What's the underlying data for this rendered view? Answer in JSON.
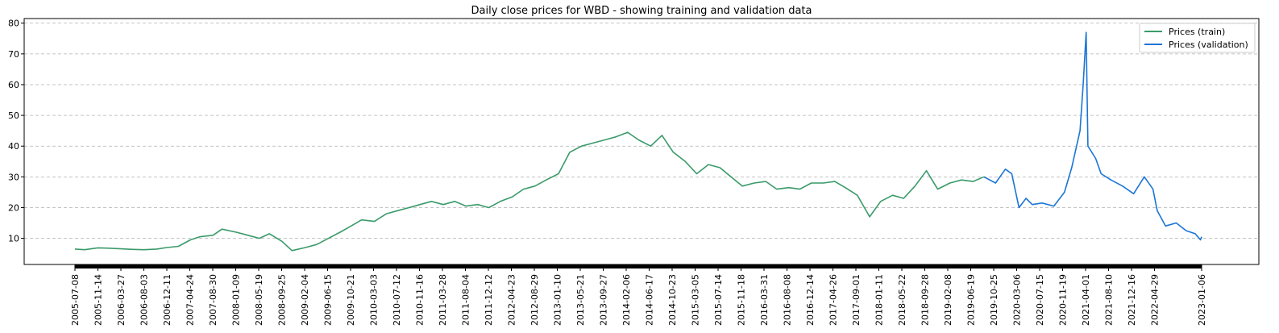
{
  "chart_data": {
    "type": "line",
    "title": "Daily close prices for WBD - showing training and validation data",
    "xlabel": "",
    "ylabel": "",
    "x_range": [
      "2005-07-08",
      "2023-01-06"
    ],
    "ylim": [
      1.5,
      81.5
    ],
    "y_ticks": [
      10,
      20,
      30,
      40,
      50,
      60,
      70,
      80
    ],
    "x_tick_labels": [
      "2005-07-08",
      "2005-11-14",
      "2006-03-27",
      "2006-08-03",
      "2006-12-11",
      "2007-04-24",
      "2007-08-30",
      "2008-01-09",
      "2008-05-19",
      "2008-09-25",
      "2009-02-04",
      "2009-06-15",
      "2009-10-21",
      "2010-03-03",
      "2010-07-12",
      "2010-11-16",
      "2011-03-28",
      "2011-08-04",
      "2011-12-12",
      "2012-04-23",
      "2012-08-29",
      "2013-01-10",
      "2013-05-21",
      "2013-09-27",
      "2014-02-06",
      "2014-06-17",
      "2014-10-23",
      "2015-03-05",
      "2015-07-14",
      "2015-11-18",
      "2016-03-31",
      "2016-08-08",
      "2016-12-14",
      "2017-04-26",
      "2017-09-01",
      "2018-01-11",
      "2018-05-22",
      "2018-09-28",
      "2019-02-08",
      "2019-06-19",
      "2019-10-25",
      "2020-03-06",
      "2020-07-15",
      "2020-11-19",
      "2021-04-01",
      "2021-08-10",
      "2021-12-16",
      "2022-04-29",
      "2023-01-06"
    ],
    "grid": "y-dashed",
    "legend_position": "top-right",
    "series": [
      {
        "name": "Prices (train)",
        "color": "#3a9a6a",
        "points": [
          [
            "2005-07-08",
            6.5
          ],
          [
            "2005-09-01",
            6.3
          ],
          [
            "2005-11-14",
            6.9
          ],
          [
            "2006-01-15",
            6.8
          ],
          [
            "2006-03-27",
            6.6
          ],
          [
            "2006-06-01",
            6.4
          ],
          [
            "2006-08-03",
            6.3
          ],
          [
            "2006-10-15",
            6.5
          ],
          [
            "2006-12-11",
            7.0
          ],
          [
            "2007-02-15",
            7.4
          ],
          [
            "2007-04-24",
            9.5
          ],
          [
            "2007-06-15",
            10.5
          ],
          [
            "2007-08-30",
            11.0
          ],
          [
            "2007-10-20",
            13.0
          ],
          [
            "2008-01-09",
            12.0
          ],
          [
            "2008-03-15",
            11.0
          ],
          [
            "2008-05-19",
            10.0
          ],
          [
            "2008-07-15",
            11.5
          ],
          [
            "2008-09-25",
            9.0
          ],
          [
            "2008-11-20",
            6.0
          ],
          [
            "2009-02-04",
            7.0
          ],
          [
            "2009-04-10",
            8.0
          ],
          [
            "2009-06-15",
            10.0
          ],
          [
            "2009-08-20",
            12.0
          ],
          [
            "2009-10-21",
            14.0
          ],
          [
            "2009-12-20",
            16.0
          ],
          [
            "2010-03-03",
            15.5
          ],
          [
            "2010-05-10",
            18.0
          ],
          [
            "2010-07-12",
            19.0
          ],
          [
            "2010-09-15",
            20.0
          ],
          [
            "2010-11-16",
            21.0
          ],
          [
            "2011-01-20",
            22.0
          ],
          [
            "2011-03-28",
            21.0
          ],
          [
            "2011-06-01",
            22.0
          ],
          [
            "2011-08-04",
            20.5
          ],
          [
            "2011-10-10",
            21.0
          ],
          [
            "2011-12-12",
            20.0
          ],
          [
            "2012-02-15",
            22.0
          ],
          [
            "2012-04-23",
            23.5
          ],
          [
            "2012-06-25",
            26.0
          ],
          [
            "2012-08-29",
            27.0
          ],
          [
            "2012-11-01",
            29.0
          ],
          [
            "2013-01-10",
            31.0
          ],
          [
            "2013-03-15",
            38.0
          ],
          [
            "2013-05-21",
            40.0
          ],
          [
            "2013-07-25",
            41.0
          ],
          [
            "2013-09-27",
            42.0
          ],
          [
            "2013-12-01",
            43.0
          ],
          [
            "2014-02-06",
            44.5
          ],
          [
            "2014-04-10",
            42.0
          ],
          [
            "2014-06-17",
            40.0
          ],
          [
            "2014-08-20",
            43.5
          ],
          [
            "2014-10-23",
            38.0
          ],
          [
            "2014-12-30",
            35.0
          ],
          [
            "2015-03-05",
            31.0
          ],
          [
            "2015-05-10",
            34.0
          ],
          [
            "2015-07-14",
            33.0
          ],
          [
            "2015-09-15",
            30.0
          ],
          [
            "2015-11-18",
            27.0
          ],
          [
            "2016-01-25",
            28.0
          ],
          [
            "2016-03-31",
            28.5
          ],
          [
            "2016-06-01",
            26.0
          ],
          [
            "2016-08-08",
            26.5
          ],
          [
            "2016-10-10",
            26.0
          ],
          [
            "2016-12-14",
            28.0
          ],
          [
            "2017-02-20",
            28.0
          ],
          [
            "2017-04-26",
            28.5
          ],
          [
            "2017-06-25",
            26.5
          ],
          [
            "2017-09-01",
            24.0
          ],
          [
            "2017-11-10",
            17.0
          ],
          [
            "2018-01-11",
            22.0
          ],
          [
            "2018-03-20",
            24.0
          ],
          [
            "2018-05-22",
            23.0
          ],
          [
            "2018-07-25",
            27.0
          ],
          [
            "2018-09-28",
            32.0
          ],
          [
            "2018-12-01",
            26.0
          ],
          [
            "2019-02-08",
            28.0
          ],
          [
            "2019-04-15",
            29.0
          ],
          [
            "2019-06-19",
            28.5
          ],
          [
            "2019-08-20",
            30.0
          ]
        ]
      },
      {
        "name": "Prices (validation)",
        "color": "#1a75d6",
        "points": [
          [
            "2019-08-20",
            30.0
          ],
          [
            "2019-10-25",
            28.0
          ],
          [
            "2019-12-20",
            32.5
          ],
          [
            "2020-01-25",
            31.0
          ],
          [
            "2020-03-06",
            20.0
          ],
          [
            "2020-04-15",
            23.0
          ],
          [
            "2020-05-20",
            21.0
          ],
          [
            "2020-07-15",
            21.5
          ],
          [
            "2020-09-20",
            20.5
          ],
          [
            "2020-11-19",
            25.0
          ],
          [
            "2020-12-30",
            33.0
          ],
          [
            "2021-02-15",
            45.0
          ],
          [
            "2021-03-05",
            60.0
          ],
          [
            "2021-03-22",
            77.0
          ],
          [
            "2021-04-01",
            40.0
          ],
          [
            "2021-05-15",
            36.0
          ],
          [
            "2021-06-15",
            31.0
          ],
          [
            "2021-08-10",
            29.0
          ],
          [
            "2021-10-15",
            27.0
          ],
          [
            "2021-12-16",
            24.5
          ],
          [
            "2022-02-15",
            30.0
          ],
          [
            "2022-04-05",
            26.0
          ],
          [
            "2022-04-29",
            19.0
          ],
          [
            "2022-06-15",
            14.0
          ],
          [
            "2022-08-15",
            15.0
          ],
          [
            "2022-10-10",
            12.5
          ],
          [
            "2022-12-01",
            11.5
          ],
          [
            "2022-12-30",
            9.5
          ],
          [
            "2023-01-06",
            10.5
          ]
        ]
      }
    ]
  }
}
